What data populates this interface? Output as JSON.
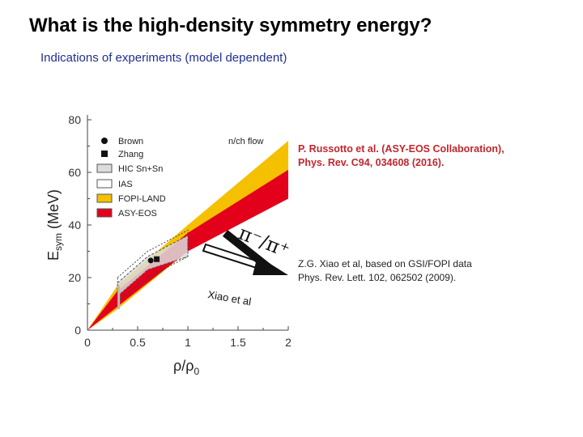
{
  "slide": {
    "title": "What is the high-density symmetry energy?",
    "subtitle": "Indications of experiments (model dependent)"
  },
  "references": {
    "asy_eos": {
      "line1": "P. Russotto et al. (ASY-EOS Collaboration),",
      "line2": "Phys. Rev. C94, 034608 (2016)."
    },
    "xiao": {
      "line1": "Z.G. Xiao et al, based on GSI/FOPI data",
      "line2": "Phys. Rev. Lett. 102, 062502 (2009)."
    }
  },
  "colors": {
    "asy_eos": "#e3001b",
    "fopi_land": "#f5c000",
    "hic": "#dcdcdc",
    "title_blue": "#1f2f8f",
    "ref_red": "#c0272d"
  },
  "chart_data": {
    "type": "area",
    "xlabel": "ρ/ρ₀",
    "ylabel": "E_sym (MeV)",
    "xlim": [
      0,
      2
    ],
    "ylim": [
      0,
      80
    ],
    "x_ticks": [
      "0",
      "0.5",
      "1",
      "1.5",
      "2"
    ],
    "y_ticks": [
      "0",
      "20",
      "40",
      "60",
      "80"
    ],
    "legend": {
      "placement": "top-left",
      "entries": [
        {
          "label": "Brown",
          "marker": "circle"
        },
        {
          "label": "Zhang",
          "marker": "square"
        },
        {
          "label": "HIC Sn+Sn",
          "marker": "box-gray"
        },
        {
          "label": "IAS",
          "marker": "box-white"
        },
        {
          "label": "FOPI-LAND",
          "marker": "box-yellow"
        },
        {
          "label": "ASY-EOS",
          "marker": "box-red"
        }
      ]
    },
    "annotations": {
      "nch_flow": "n/ch flow",
      "pion_ratio": "π⁻/π⁺",
      "xiao": "Xiao et al"
    },
    "series": [
      {
        "name": "FOPI-LAND",
        "upper": [
          [
            0.0,
            0
          ],
          [
            0.3,
            17
          ],
          [
            1.0,
            40
          ],
          [
            2.0,
            72
          ]
        ],
        "lower": [
          [
            0.0,
            0
          ],
          [
            0.3,
            8
          ],
          [
            1.0,
            30
          ],
          [
            2.0,
            51
          ]
        ]
      },
      {
        "name": "ASY-EOS",
        "upper": [
          [
            0.0,
            0
          ],
          [
            0.3,
            15
          ],
          [
            1.0,
            37
          ],
          [
            2.0,
            61
          ]
        ],
        "lower": [
          [
            0.0,
            0
          ],
          [
            0.3,
            9
          ],
          [
            1.0,
            30
          ],
          [
            2.0,
            50
          ]
        ]
      },
      {
        "name": "HIC Sn+Sn",
        "upper": [
          [
            0.3,
            18
          ],
          [
            0.6,
            28
          ],
          [
            1.0,
            36
          ]
        ],
        "lower": [
          [
            0.3,
            13
          ],
          [
            0.6,
            23
          ],
          [
            1.0,
            28
          ]
        ]
      },
      {
        "name": "IAS",
        "upper": [
          [
            0.3,
            20
          ],
          [
            0.6,
            30
          ],
          [
            1.0,
            38
          ]
        ],
        "lower": [
          [
            0.3,
            11
          ],
          [
            0.6,
            20
          ],
          [
            1.0,
            28
          ]
        ]
      }
    ],
    "points": [
      {
        "name": "Brown",
        "x": 0.63,
        "y": 26.5
      },
      {
        "name": "Zhang",
        "x": 0.69,
        "y": 27.0
      }
    ]
  }
}
